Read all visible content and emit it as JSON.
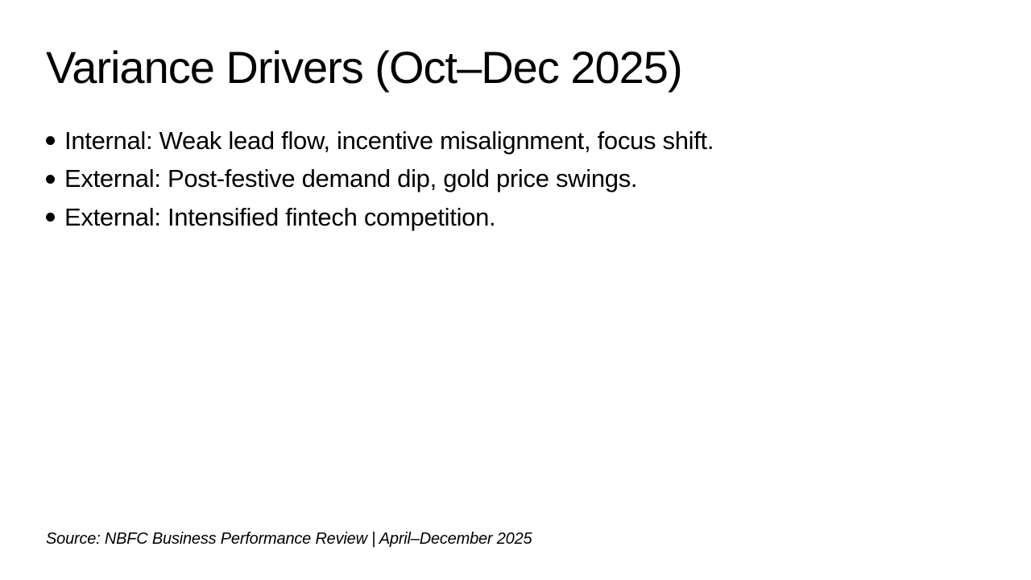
{
  "slide": {
    "title": "Variance Drivers (Oct–Dec 2025)",
    "bullets": [
      "Internal: Weak lead flow, incentive misalignment, focus shift.",
      "External: Post-festive demand dip, gold price swings.",
      "External: Intensified fintech competition."
    ],
    "source": "Source: NBFC Business Performance Review | April–December 2025",
    "colors": {
      "background": "#ffffff",
      "text": "#000000"
    }
  }
}
